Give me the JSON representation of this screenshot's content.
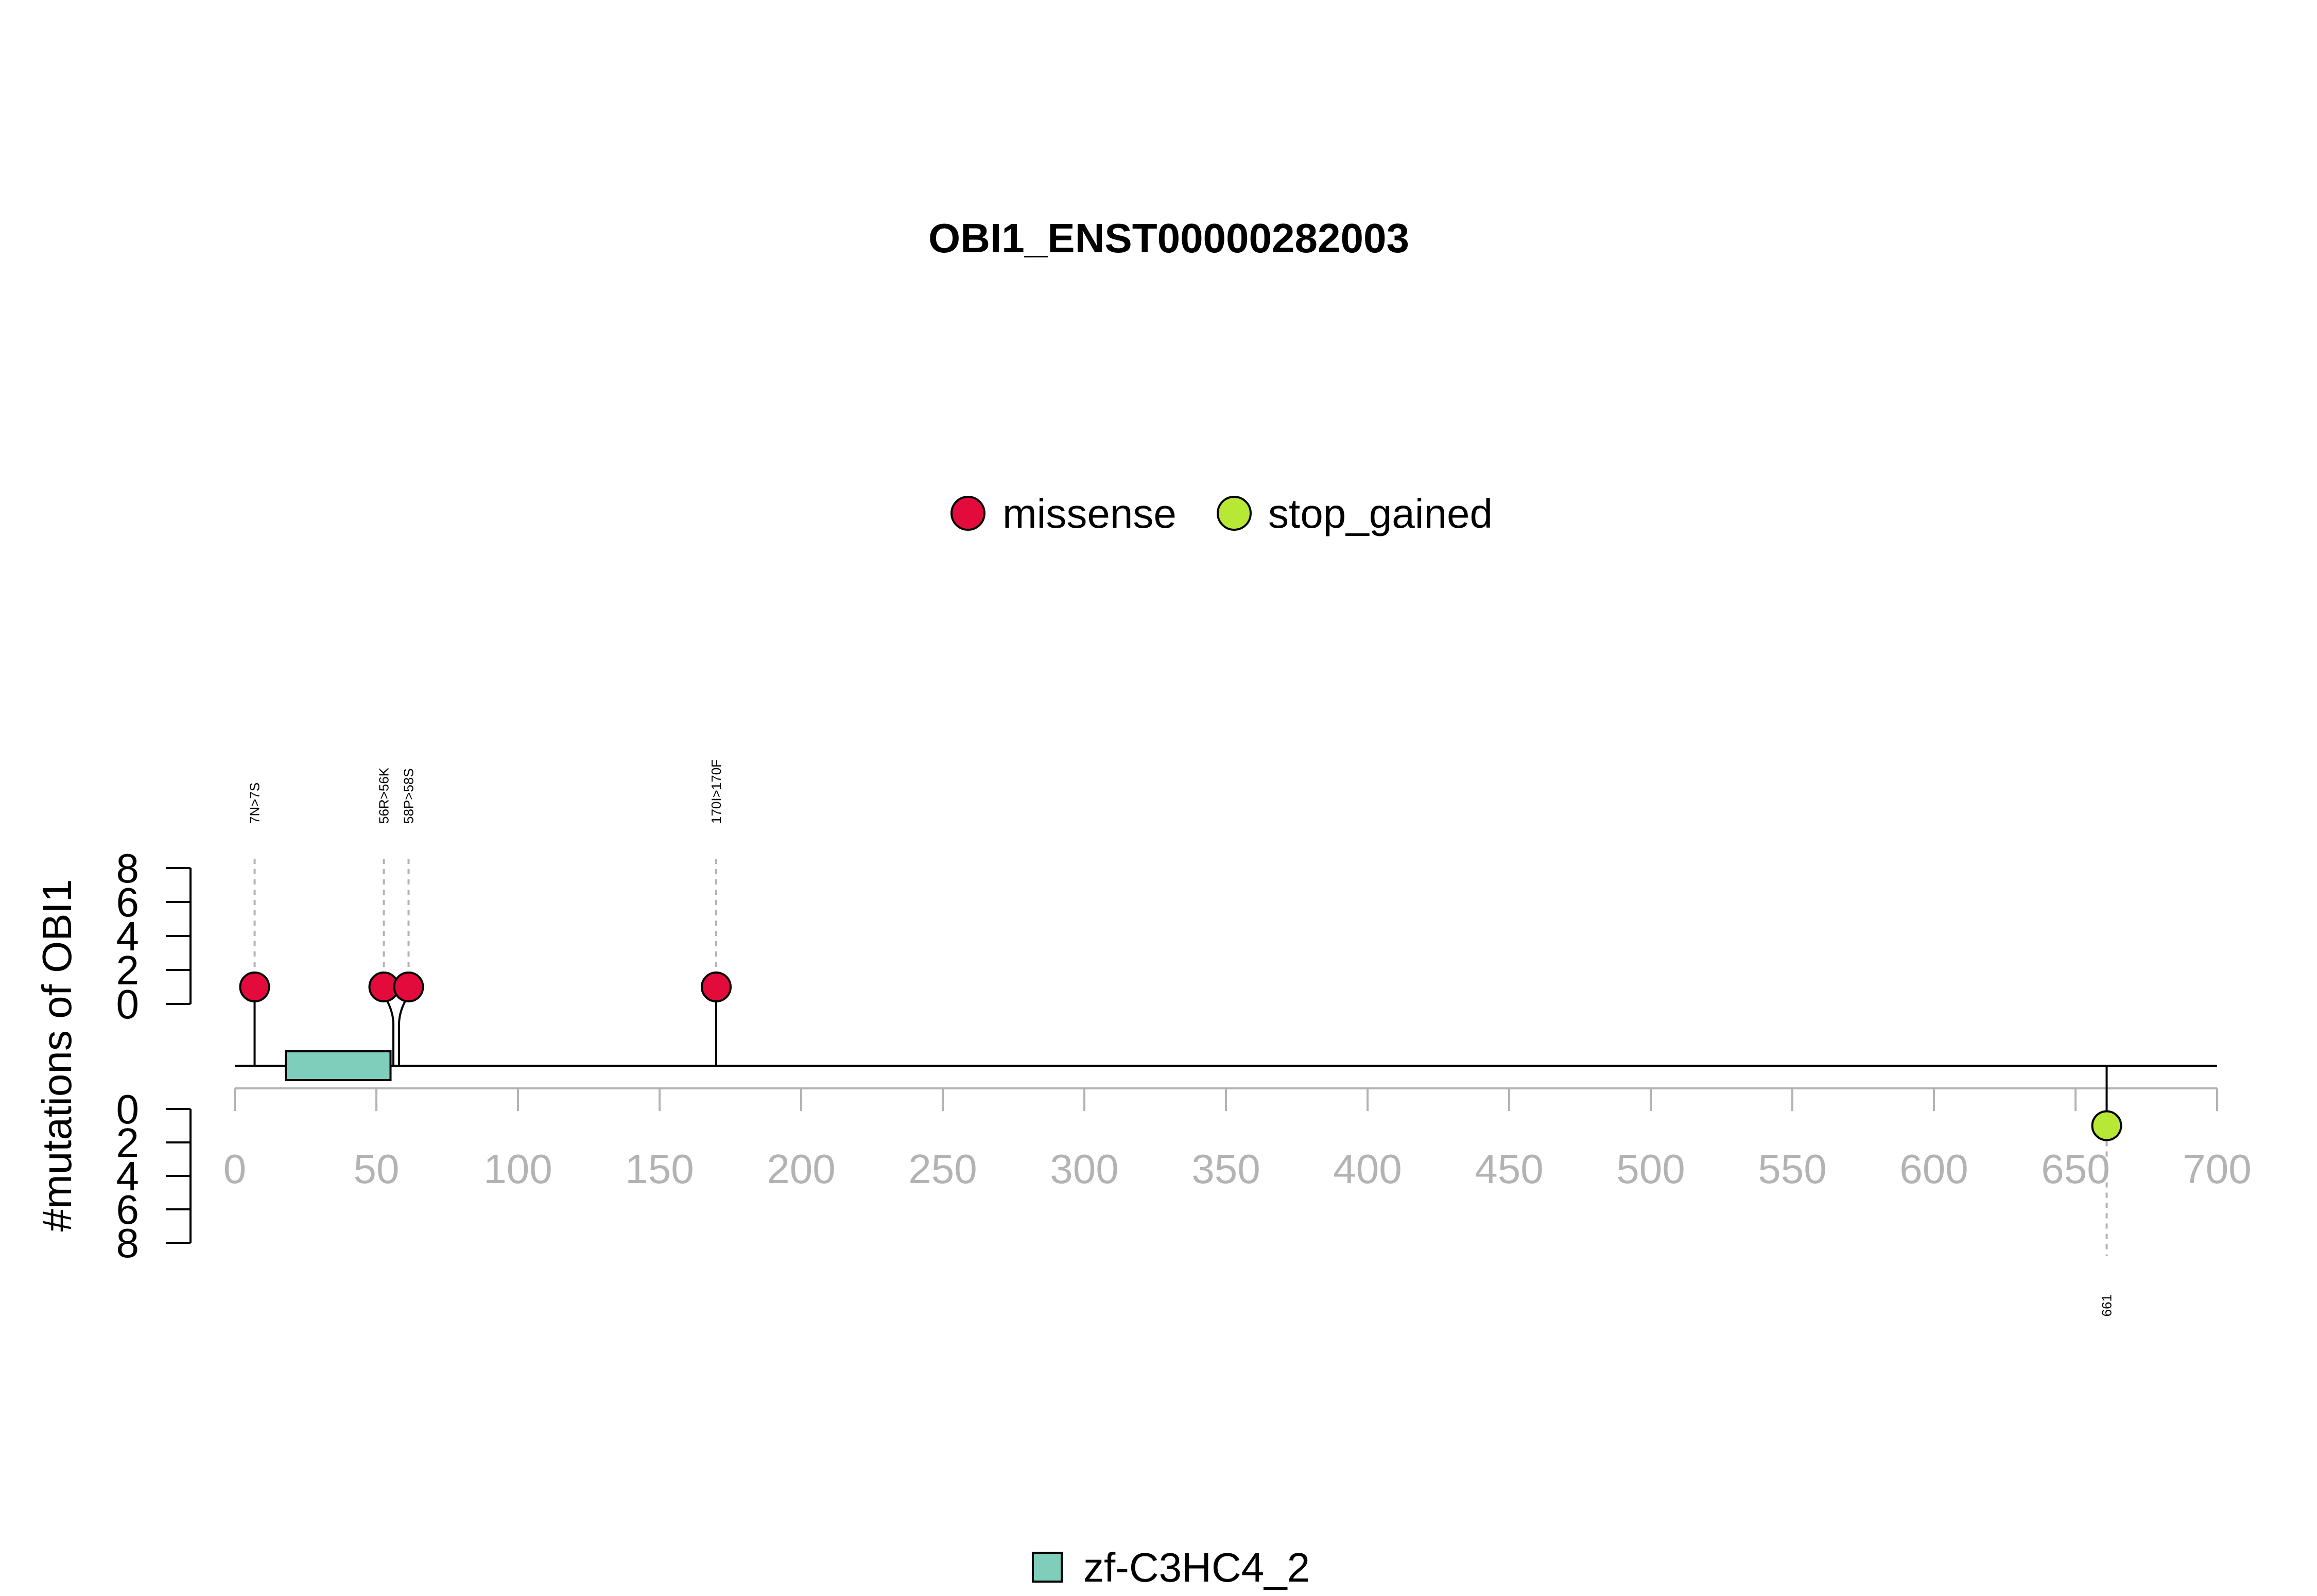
{
  "chart_data": {
    "type": "lollipop",
    "title": "OBI1_ENST00000282003",
    "ylabel": "#mutations of OBI1",
    "xlim": [
      0,
      700
    ],
    "x_ticks": [
      "0",
      "50",
      "100",
      "150",
      "200",
      "250",
      "300",
      "350",
      "400",
      "450",
      "500",
      "550",
      "600",
      "650",
      "700"
    ],
    "y_ticks": [
      "0",
      "2",
      "4",
      "6",
      "8"
    ],
    "ylim": [
      0,
      8
    ],
    "legend": [
      {
        "label": "missense",
        "color": "#e30b3b"
      },
      {
        "label": "stop_gained",
        "color": "#b8e836"
      }
    ],
    "mutations_above": [
      {
        "position": 7,
        "label": "7N>7S",
        "count": 1,
        "type": "missense"
      },
      {
        "position": 56,
        "label": "56R>56K",
        "count": 1,
        "type": "missense"
      },
      {
        "position": 58,
        "label": "58P>58S",
        "count": 1,
        "type": "missense"
      },
      {
        "position": 170,
        "label": "170I>170F",
        "count": 1,
        "type": "missense"
      }
    ],
    "mutations_below": [
      {
        "position": 661,
        "label": "661",
        "count": 1,
        "type": "stop_gained"
      }
    ],
    "domains": [
      {
        "name": "zf-C3HC4_2",
        "start": 18,
        "end": 55,
        "color": "#7fcdbb"
      }
    ]
  }
}
